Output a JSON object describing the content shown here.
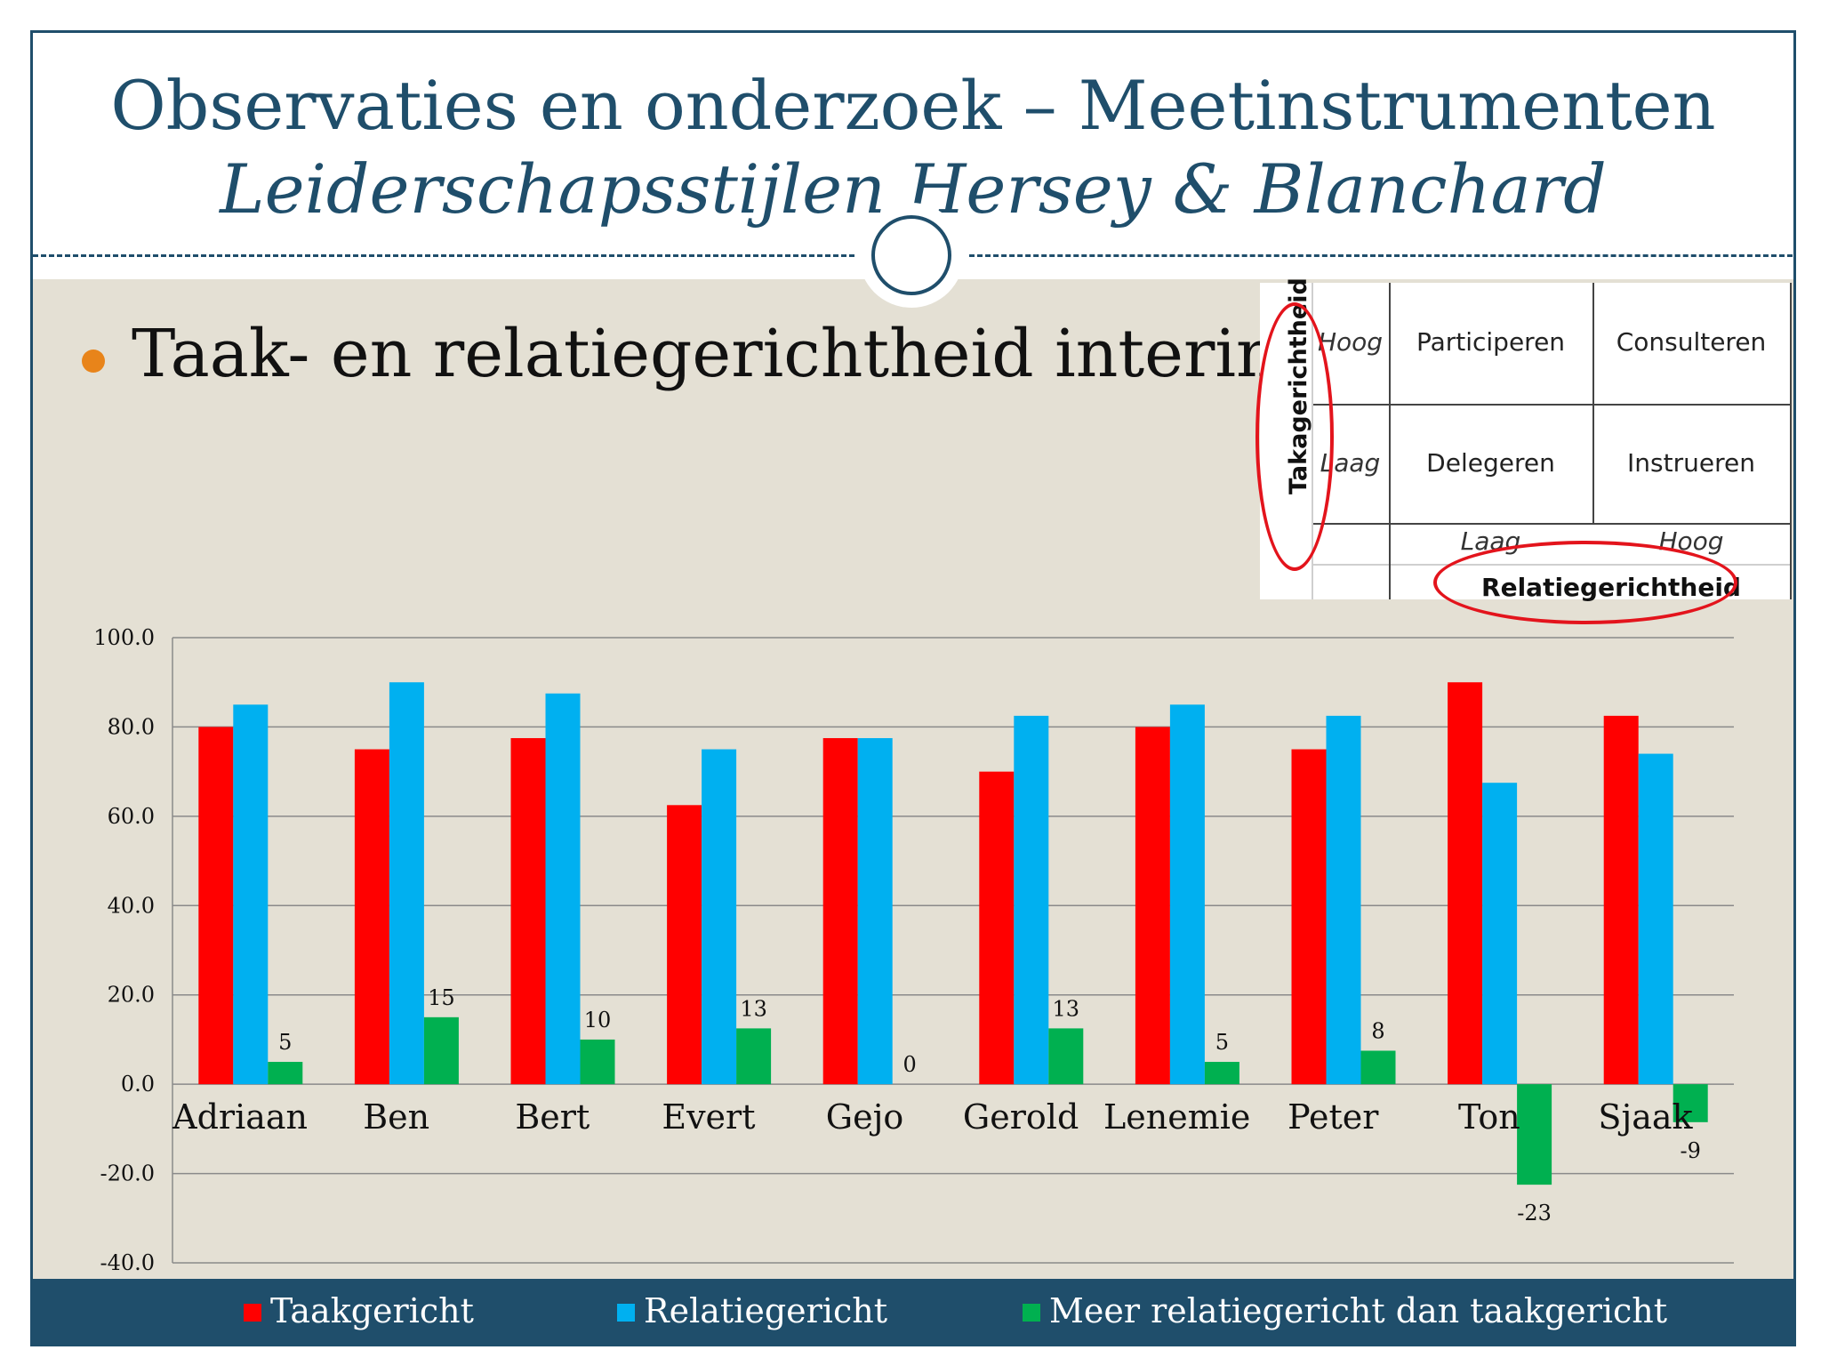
{
  "slide": {
    "title": "Observaties en onderzoek – Meetinstrumenten",
    "subtitle": "Leiderschapsstijlen Hersey & Blanchard",
    "bullet": "Taak- en relatiegerichtheid interims:"
  },
  "inset_table": {
    "y_axis_label": "Takagerichtheid",
    "x_axis_label": "Relatiegerichtheid",
    "y_levels": [
      "Hoog",
      "Laag"
    ],
    "x_levels": [
      "Laag",
      "Hoog"
    ],
    "cells": [
      [
        "Participeren",
        "Consulteren"
      ],
      [
        "Delegeren",
        "Instrueren"
      ]
    ],
    "highlight_color": "#e3141c"
  },
  "chart_data": {
    "type": "bar",
    "categories": [
      "Adriaan",
      "Ben",
      "Bert",
      "Evert",
      "Gejo",
      "Gerold",
      "Lenemie",
      "Peter",
      "Ton",
      "Sjaak"
    ],
    "series": [
      {
        "name": "Taakgericht",
        "color": "#ff0000",
        "values": [
          80,
          75,
          77.5,
          62.5,
          77.5,
          70,
          80,
          75,
          90,
          82.5
        ]
      },
      {
        "name": "Relatiegericht",
        "color": "#00b0f0",
        "values": [
          85,
          90,
          87.5,
          75,
          77.5,
          82.5,
          85,
          82.5,
          67.5,
          74
        ]
      },
      {
        "name": "Meer relatiegericht dan taakgericht",
        "color": "#00b050",
        "values": [
          5,
          15,
          10,
          12.5,
          0,
          12.5,
          5,
          7.5,
          -22.5,
          -8.5
        ],
        "data_labels": [
          "5",
          "15",
          "10",
          "13",
          "0",
          "13",
          "5",
          "8",
          "-23",
          "-9"
        ]
      }
    ],
    "ylim": [
      -40,
      100
    ],
    "yticks": [
      "100.0",
      "80.0",
      "60.0",
      "40.0",
      "20.0",
      "0.0",
      "-20.0",
      "-40.0"
    ],
    "ytick_values": [
      100,
      80,
      60,
      40,
      20,
      0,
      -20,
      -40
    ],
    "grid": true,
    "legend": "bottom"
  }
}
